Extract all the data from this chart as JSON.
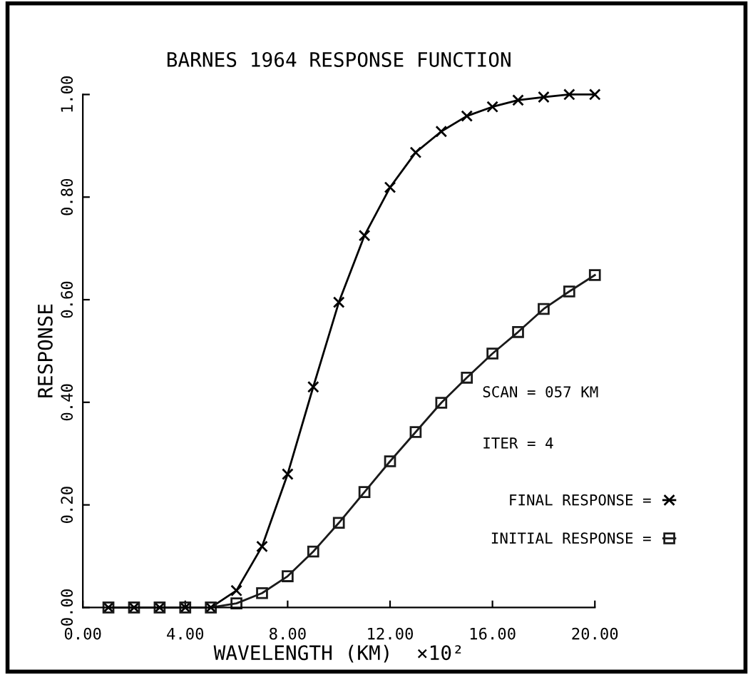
{
  "chart_data": {
    "type": "line",
    "title": "BARNES 1964 RESPONSE FUNCTION",
    "xlabel": "WAVELENGTH (KM)  ×10²",
    "ylabel": "RESPONSE",
    "x": [
      1,
      2,
      3,
      4,
      5,
      6,
      7,
      8,
      9,
      10,
      11,
      12,
      13,
      14,
      15,
      16,
      17,
      18,
      19,
      20
    ],
    "series": [
      {
        "name": "FINAL RESPONSE =",
        "color": "#000000",
        "marker": "cross",
        "values": [
          0,
          0,
          0,
          0,
          0,
          0.033,
          0.119,
          0.26,
          0.43,
          0.595,
          0.725,
          0.819,
          0.887,
          0.928,
          0.958,
          0.976,
          0.989,
          0.995,
          1.0,
          1.0
        ]
      },
      {
        "name": "INITIAL RESPONSE =",
        "color": "#1a1a1a",
        "marker": "square",
        "values": [
          0,
          0,
          0,
          0,
          0,
          0.008,
          0.028,
          0.061,
          0.109,
          0.165,
          0.225,
          0.285,
          0.342,
          0.399,
          0.448,
          0.495,
          0.537,
          0.582,
          0.616,
          0.648
        ]
      }
    ],
    "xlim": [
      0,
      20
    ],
    "xticks": [
      {
        "value": 0,
        "label": "0.00"
      },
      {
        "value": 4,
        "label": "4.00"
      },
      {
        "value": 8,
        "label": "8.00"
      },
      {
        "value": 12,
        "label": "12.00"
      },
      {
        "value": 16,
        "label": "16.00"
      },
      {
        "value": 20,
        "label": "20.00"
      }
    ],
    "ylim": [
      0,
      1
    ],
    "yticks": [
      {
        "value": 0,
        "label": "0.00"
      },
      {
        "value": 0.2,
        "label": "0.20"
      },
      {
        "value": 0.4,
        "label": "0.40"
      },
      {
        "value": 0.6,
        "label": "0.60"
      },
      {
        "value": 0.8,
        "label": "0.80"
      },
      {
        "value": 1,
        "label": "1.00"
      }
    ],
    "annotations": [
      "SCAN = 057 KM",
      "ITER = 4"
    ],
    "legend": "right",
    "grid": false,
    "line_style": "solid"
  }
}
